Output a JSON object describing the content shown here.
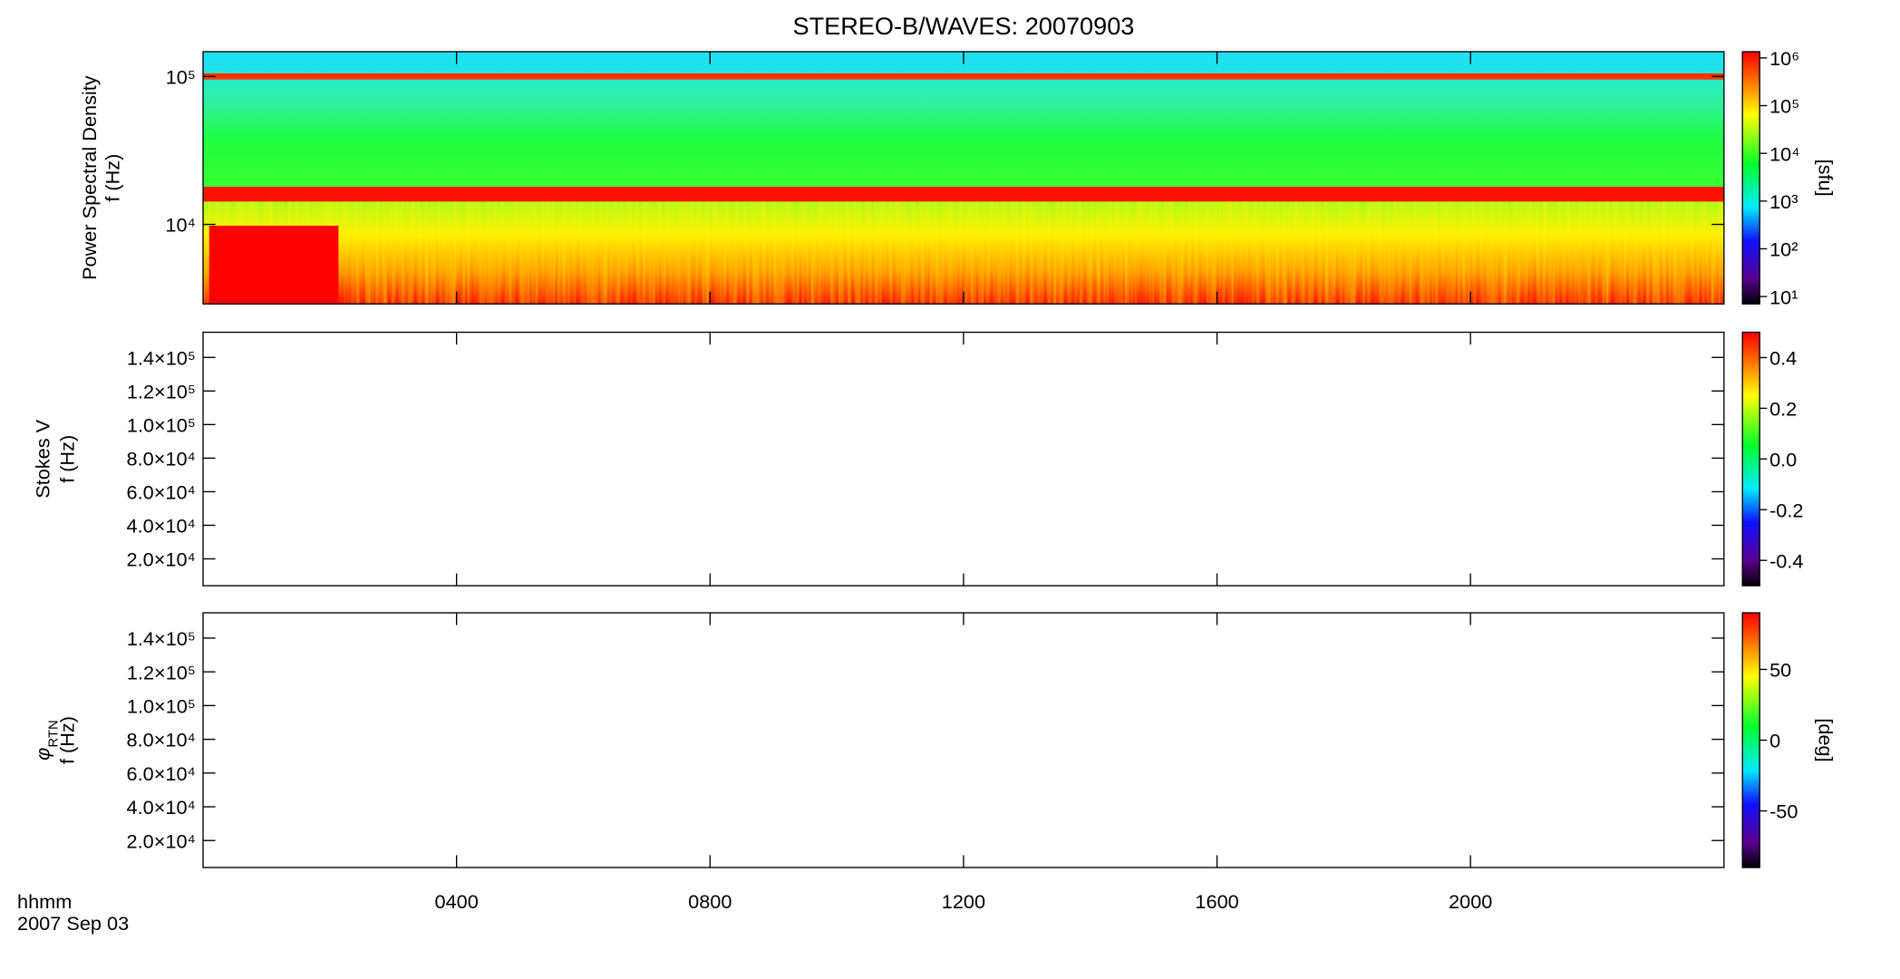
{
  "chart_data": [
    {
      "type": "heatmap",
      "title": "STEREO-B/WAVES: 20070903",
      "ylabel": "Power Spectral Density",
      "ylabel2": "f (Hz)",
      "ylog": true,
      "ylim": [
        2900,
        147000
      ],
      "yticks": [
        {
          "value": 10000,
          "label": "10⁴"
        },
        {
          "value": 100000,
          "label": "10⁵"
        }
      ],
      "xlim": [
        0,
        24
      ],
      "colorbar": {
        "log": true,
        "lim": [
          7,
          1350000
        ],
        "ticks": [
          {
            "value": 10,
            "label": "10¹"
          },
          {
            "value": 100,
            "label": "10²"
          },
          {
            "value": 1000,
            "label": "10³"
          },
          {
            "value": 10000,
            "label": "10⁴"
          },
          {
            "value": 100000,
            "label": "10⁵"
          },
          {
            "value": 1000000,
            "label": "10⁶"
          }
        ],
        "label": "[sfu]"
      }
    },
    {
      "type": "heatmap",
      "ylabel": "Stokes V",
      "ylabel2": "f (Hz)",
      "ylim": [
        4000,
        155000
      ],
      "yticks": [
        {
          "value": 20000,
          "label": "2.0×10⁴"
        },
        {
          "value": 40000,
          "label": "4.0×10⁴"
        },
        {
          "value": 60000,
          "label": "6.0×10⁴"
        },
        {
          "value": 80000,
          "label": "8.0×10⁴"
        },
        {
          "value": 100000,
          "label": "1.0×10⁵"
        },
        {
          "value": 120000,
          "label": "1.2×10⁵"
        },
        {
          "value": 140000,
          "label": "1.4×10⁵"
        }
      ],
      "xlim": [
        0,
        24
      ],
      "colorbar": {
        "lim": [
          -0.5,
          0.5
        ],
        "ticks": [
          -0.4,
          -0.2,
          {
            "value": 0,
            "label": "0.0"
          },
          0.2,
          0.4
        ]
      }
    },
    {
      "type": "heatmap",
      "ylabel_symbol": "φ",
      "ylabel_subscript": "RTN",
      "ylabel2": "f (Hz)",
      "ylim": [
        4000,
        155000
      ],
      "yticks": [
        {
          "value": 20000,
          "label": "2.0×10⁴"
        },
        {
          "value": 40000,
          "label": "4.0×10⁴"
        },
        {
          "value": 60000,
          "label": "6.0×10⁴"
        },
        {
          "value": 80000,
          "label": "8.0×10⁴"
        },
        {
          "value": 100000,
          "label": "1.0×10⁵"
        },
        {
          "value": 120000,
          "label": "1.2×10⁵"
        },
        {
          "value": 140000,
          "label": "1.4×10⁵"
        }
      ],
      "xlim": [
        0,
        24
      ],
      "xticks": [
        {
          "value": 4,
          "label": "0400"
        },
        {
          "value": 8,
          "label": "0800"
        },
        {
          "value": 12,
          "label": "1200"
        },
        {
          "value": 16,
          "label": "1600"
        },
        {
          "value": 20,
          "label": "2000"
        }
      ],
      "xlabel": "hhmm",
      "xlabel2": "2007 Sep 03",
      "colorbar": {
        "lim": [
          -90,
          90
        ],
        "ticks": [
          -50,
          0,
          50
        ],
        "label": "[deg]"
      }
    }
  ]
}
